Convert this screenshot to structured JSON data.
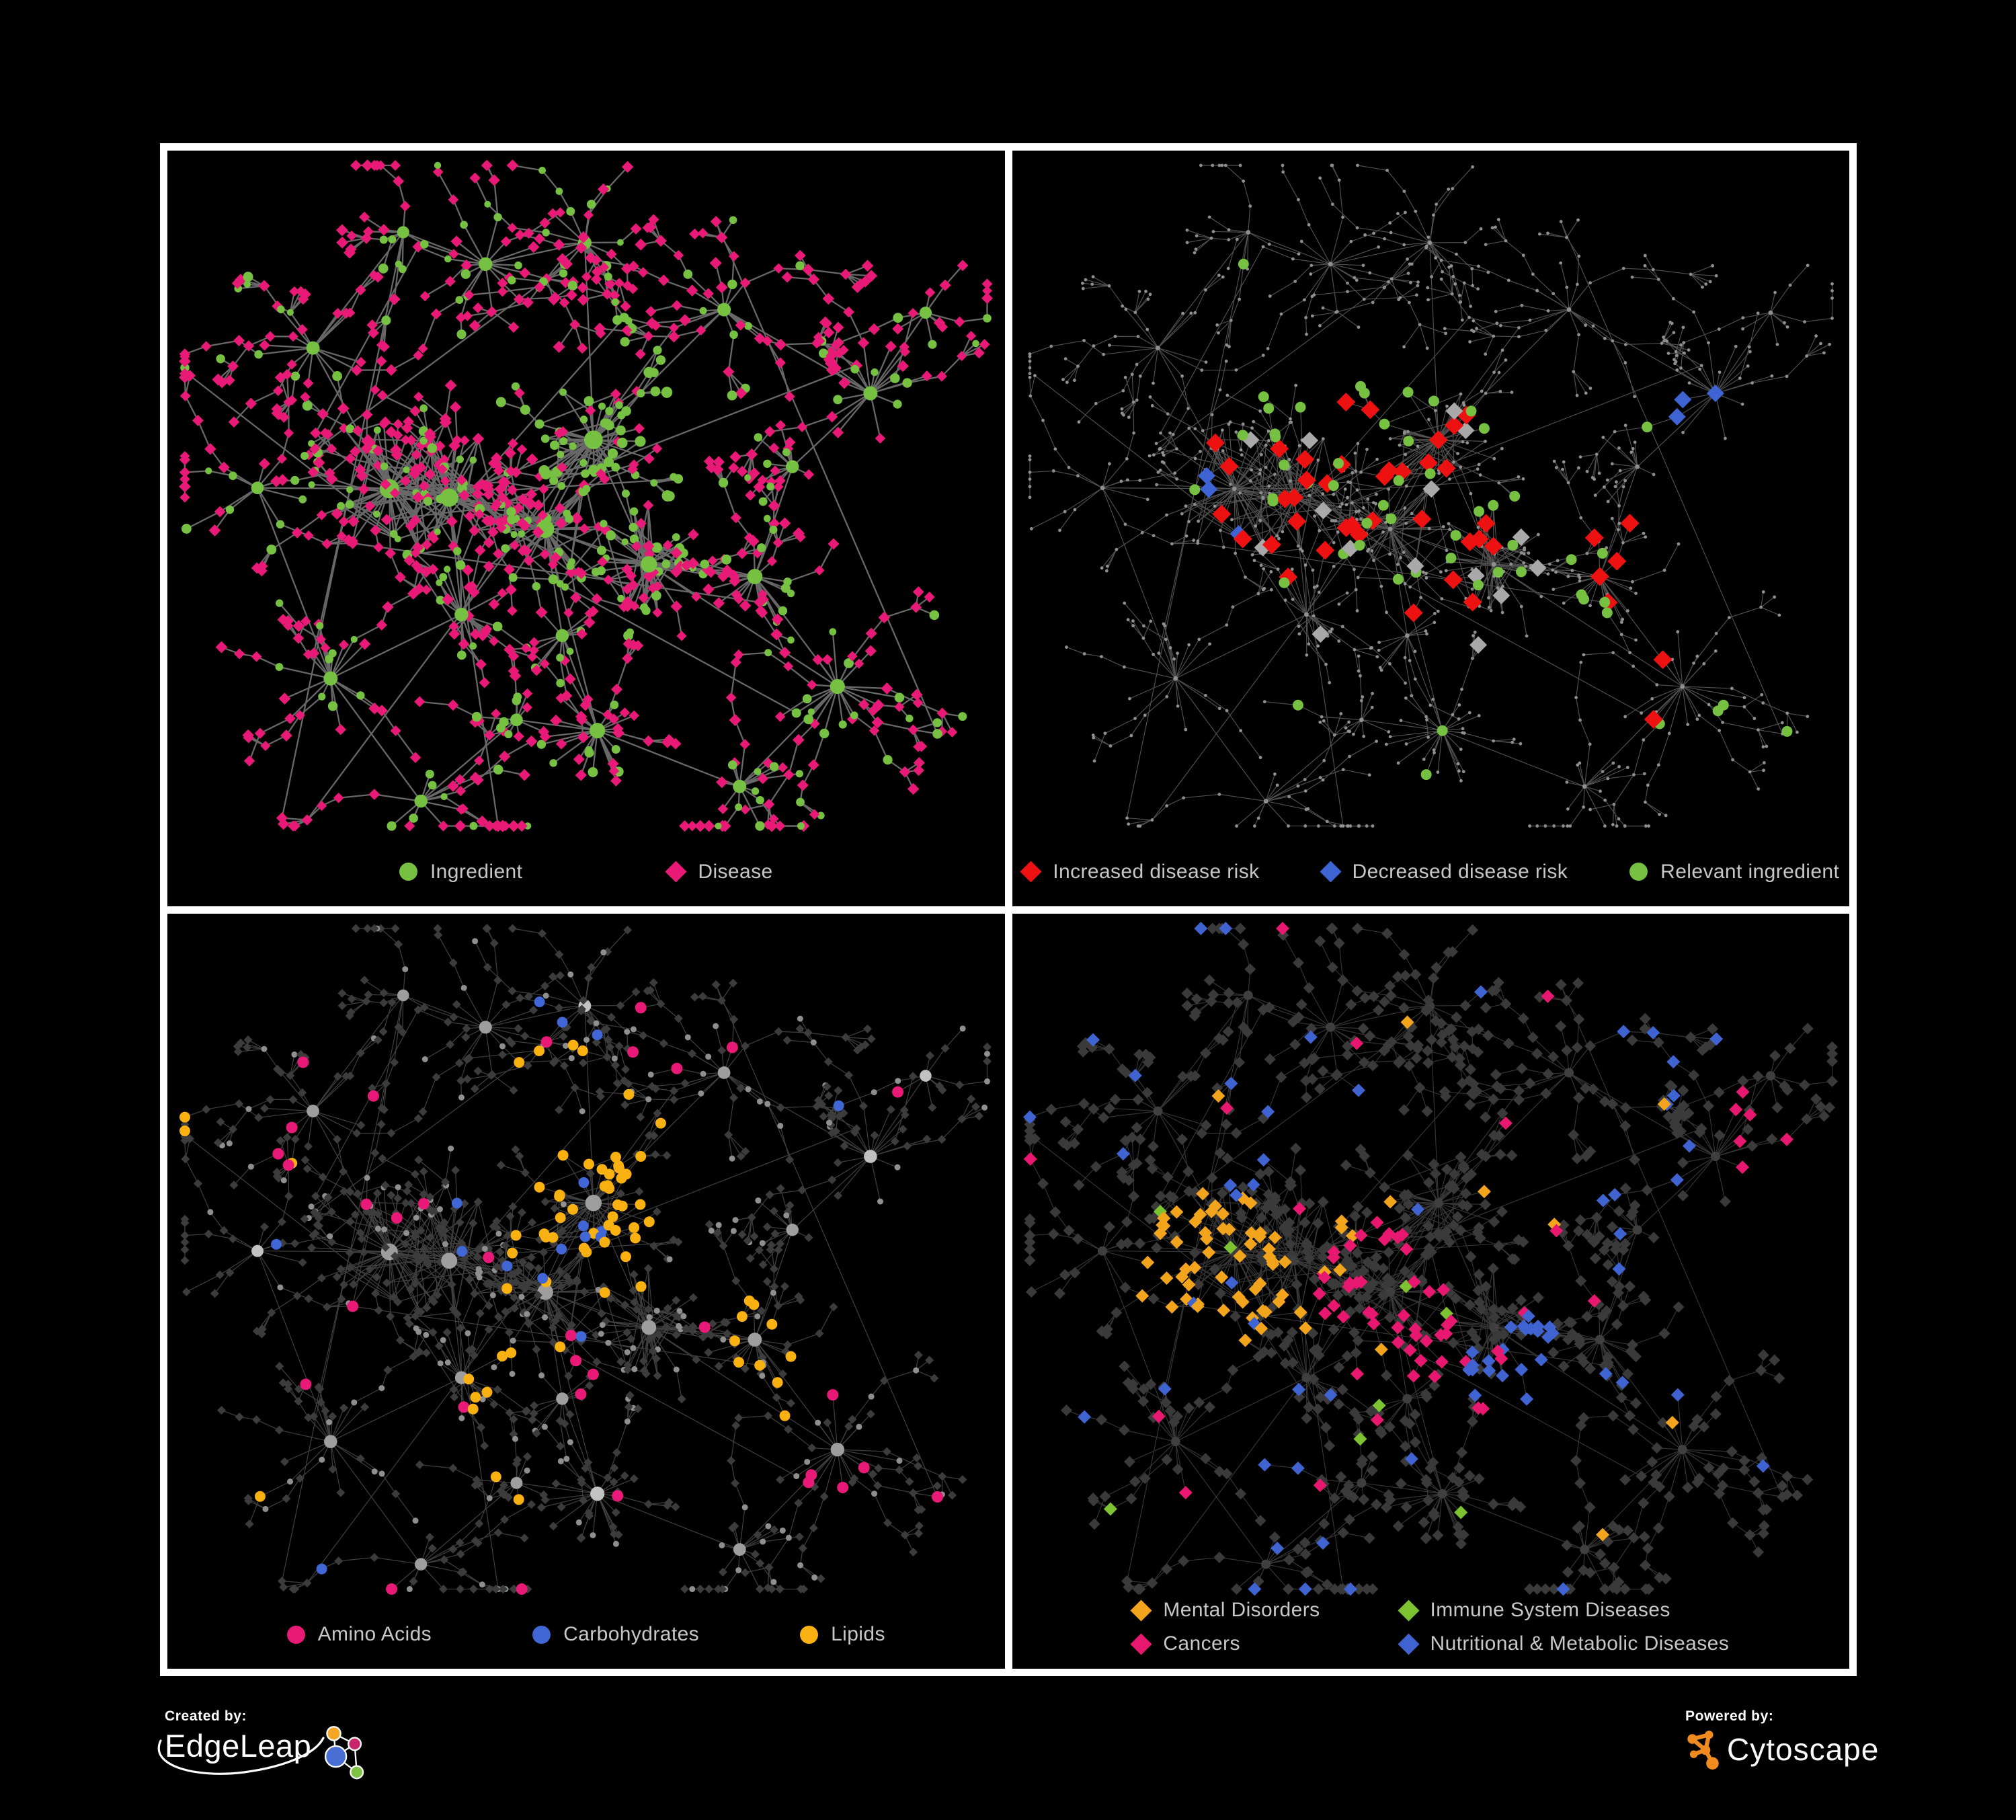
{
  "panels": [
    {
      "name": "ingredient-disease-network",
      "legend": [
        {
          "label": "Ingredient",
          "shape": "circle",
          "color": "#76c142"
        },
        {
          "label": "Disease",
          "shape": "diamond",
          "color": "#e91a77"
        }
      ],
      "style": {
        "edge": "#6e6e6e",
        "ingredient": "#76c142",
        "disease": "#e91a77"
      }
    },
    {
      "name": "disease-risk-network",
      "legend": [
        {
          "label": "Increased disease risk",
          "shape": "diamond",
          "color": "#ee1111"
        },
        {
          "label": "Decreased disease risk",
          "shape": "diamond",
          "color": "#3e64d3"
        },
        {
          "label": "Relevant ingredient",
          "shape": "circle",
          "color": "#76c142"
        }
      ],
      "style": {
        "edge": "#606060",
        "node_base": "#8f8f8f",
        "increased": "#ee1111",
        "decreased": "#3e64d3",
        "unchanged": "#a9a9a9",
        "ingredient": "#76c142"
      }
    },
    {
      "name": "nutrient-class-network",
      "legend": [
        {
          "label": "Amino Acids",
          "shape": "circle",
          "color": "#e91a77"
        },
        {
          "label": "Carbohydrates",
          "shape": "circle",
          "color": "#4166d5"
        },
        {
          "label": "Lipids",
          "shape": "circle",
          "color": "#f9b011"
        }
      ],
      "style": {
        "edge": "#9a9a9a",
        "hub": "#9e9e9e",
        "hub_light": "#c2c2c2",
        "leaf": "#3c3c3c",
        "leaf_circle": "#8f8f8f",
        "amino": "#e91a77",
        "carb": "#4166d5",
        "lipid": "#f9b011"
      }
    },
    {
      "name": "disease-class-network",
      "legend": [
        {
          "label": "Mental Disorders",
          "shape": "diamond",
          "color": "#f2a51c"
        },
        {
          "label": "Immune System Diseases",
          "shape": "diamond",
          "color": "#7dc230"
        },
        {
          "label": "Cancers",
          "shape": "diamond",
          "color": "#e8176f"
        },
        {
          "label": "Nutritional & Metabolic Diseases",
          "shape": "diamond",
          "color": "#3f63d0"
        }
      ],
      "style": {
        "edge": "#8c8c8c",
        "hub": "#3f3f3f",
        "leaf": "#3a3a3a",
        "mental": "#f2a51c",
        "immune": "#7dc230",
        "cancer": "#e8176f",
        "nutritional": "#3f63d0"
      }
    }
  ],
  "footer": {
    "created_by": {
      "label": "Created by:",
      "brand": "EdgeLeap",
      "mark_colors": {
        "orange": "#f5a623",
        "pink": "#c9256e",
        "blue": "#4a6fd4",
        "green": "#7dc242"
      }
    },
    "powered_by": {
      "label": "Powered by:",
      "brand": "Cytoscape",
      "icon_color": "#ef8b1f"
    }
  }
}
